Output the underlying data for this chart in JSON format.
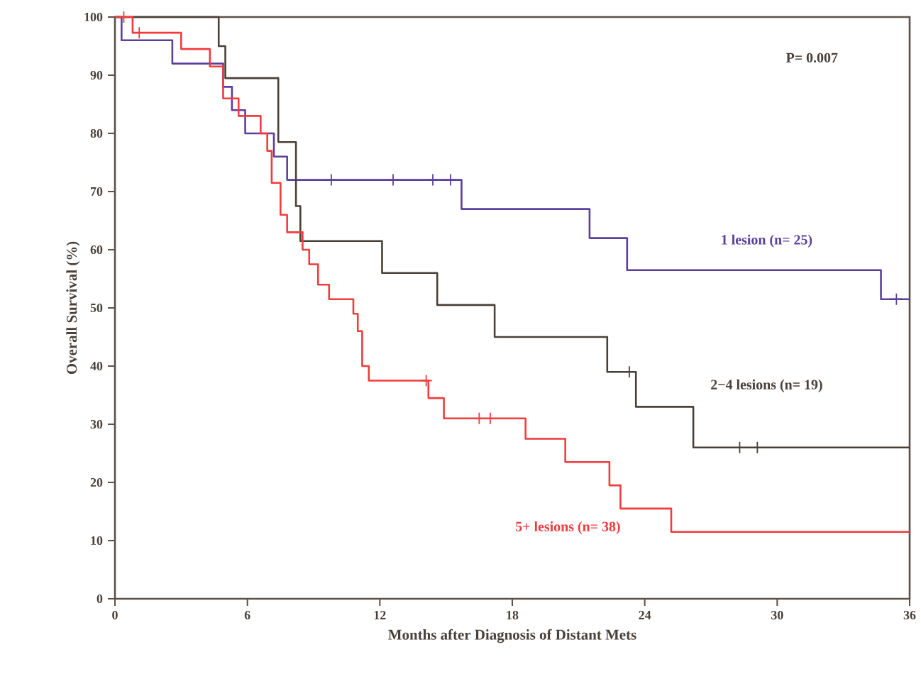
{
  "chart_data": {
    "type": "step",
    "xlabel": "Months after Diagnosis of Distant Mets",
    "ylabel": "Overall Survival (%)",
    "xlim": [
      0,
      36
    ],
    "ylim": [
      0,
      100
    ],
    "xticks": [
      0,
      6,
      12,
      18,
      24,
      30,
      36
    ],
    "yticks": [
      0,
      10,
      20,
      30,
      40,
      50,
      60,
      70,
      80,
      90,
      100
    ],
    "annotations": [
      "P= 0.007"
    ],
    "series": [
      {
        "name": "1 lesion (n= 25)",
        "color": "#5b3f9c",
        "x": [
          0,
          0.3,
          2.6,
          4.9,
          5.3,
          5.9,
          7.2,
          7.8,
          15.7,
          21.5,
          23.2,
          34.7,
          36
        ],
        "values": [
          100,
          96,
          92,
          88,
          84,
          80,
          76,
          72,
          67,
          62,
          56.5,
          51.5,
          51.5
        ]
      },
      {
        "type": "scatter",
        "marker": "cross",
        "color": "#5b3f9c",
        "x": [
          9.8,
          12.6,
          14.4,
          15.2,
          35.4
        ],
        "values": [
          72,
          72,
          72,
          72,
          51.5
        ]
      },
      {
        "name": "2−4 lesions (n= 19)",
        "color": "#4a4038",
        "x": [
          0,
          4.7,
          5.0,
          7.4,
          8.2,
          8.4,
          12.1,
          14.6,
          17.2,
          22.3,
          23.6,
          26.2,
          36
        ],
        "values": [
          100,
          95,
          89.5,
          78.5,
          67.5,
          61.5,
          56,
          50.5,
          45,
          39,
          33,
          26,
          26
        ]
      },
      {
        "type": "scatter",
        "marker": "cross",
        "color": "#4a4038",
        "x": [
          23.3,
          28.3,
          29.1
        ],
        "values": [
          39,
          26,
          26
        ]
      },
      {
        "name": "5+  lesions (n= 38)",
        "color": "#f03c3c",
        "x": [
          0,
          0.8,
          3.0,
          4.3,
          4.9,
          5.6,
          6.6,
          6.9,
          7.1,
          7.5,
          7.8,
          8.5,
          8.8,
          9.2,
          9.7,
          10.8,
          11.0,
          11.2,
          11.5,
          14.2,
          14.9,
          18.6,
          20.4,
          22.4,
          22.9,
          25.2,
          36
        ],
        "values": [
          100,
          97.3,
          94.5,
          91.5,
          86,
          83,
          80,
          77,
          71.5,
          66,
          63,
          60,
          57.5,
          54,
          51.5,
          49,
          46,
          40,
          37.5,
          34.5,
          31,
          27.5,
          23.5,
          19.5,
          15.5,
          11.5,
          11.5
        ]
      },
      {
        "type": "scatter",
        "marker": "cross",
        "color": "#f03c3c",
        "x": [
          0.4,
          1.1,
          14.1,
          16.5,
          17.0
        ],
        "values": [
          100,
          97.3,
          37.5,
          31,
          31
        ]
      }
    ]
  }
}
